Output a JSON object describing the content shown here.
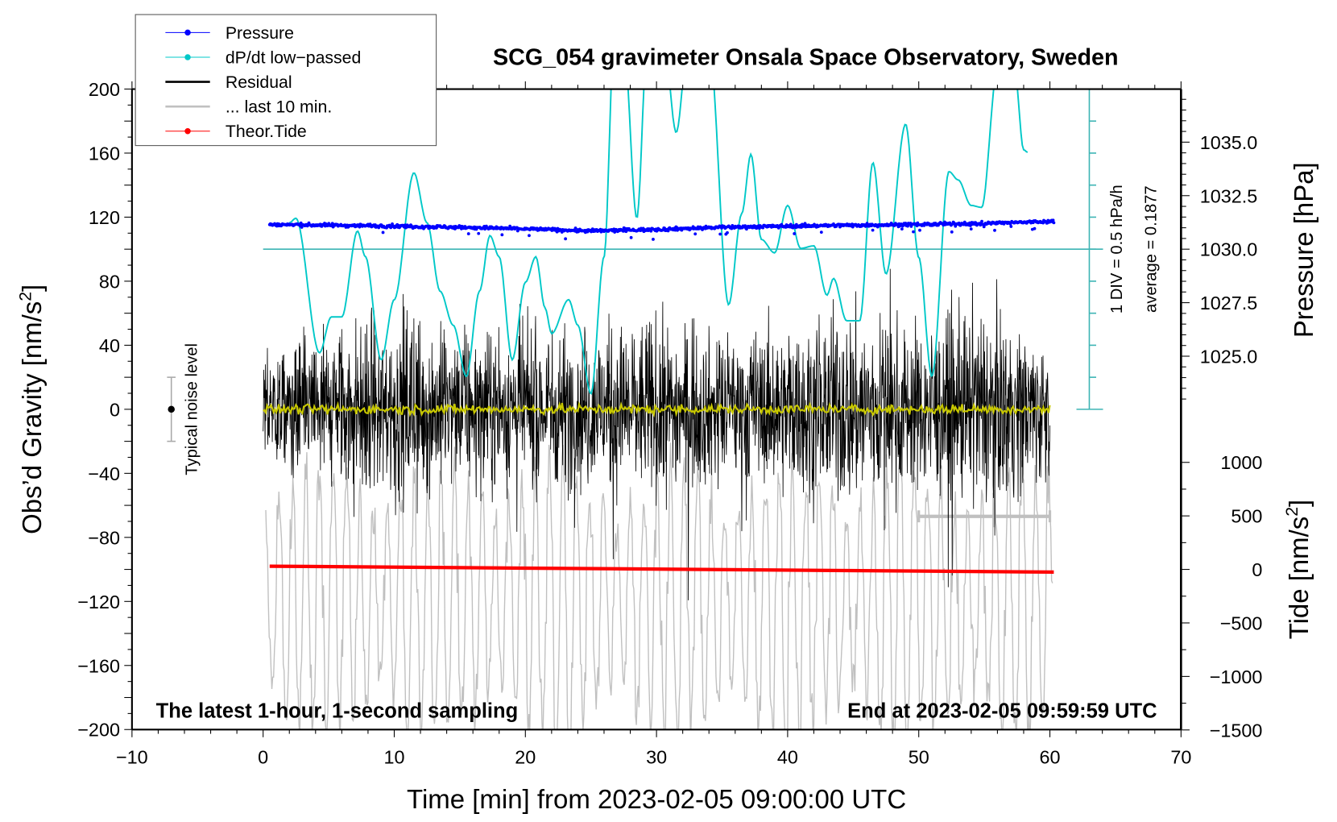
{
  "chart_data": {
    "type": "line",
    "title": "SCG_054 gravimeter Onsala Space Observatory, Sweden",
    "xlabel": "Time [min] from 2023-02-05 09:00:00 UTC",
    "ylabel": "Obs’d Gravity [nm/s",
    "ylabel_sup": "2",
    "ylabel_end": "]",
    "y2label": "Pressure [hPa]",
    "y3label": "Tide [nm/s",
    "y3label_sup": "2",
    "y3label_end": "]",
    "xlim": [
      -10,
      70
    ],
    "ylim": [
      -200,
      200
    ],
    "pressure_lim_visible": [
      1025.0,
      1035.0
    ],
    "tide_lim": [
      -1500,
      1000
    ],
    "x_ticks": [
      "−10",
      "0",
      "10",
      "20",
      "30",
      "40",
      "50",
      "60",
      "70"
    ],
    "x_tick_values": [
      -10,
      0,
      10,
      20,
      30,
      40,
      50,
      60,
      70
    ],
    "y_ticks": [
      "200",
      "160",
      "120",
      "80",
      "40",
      "0",
      "−40",
      "−80",
      "−120",
      "−160",
      "−200"
    ],
    "y_tick_values": [
      200,
      160,
      120,
      80,
      40,
      0,
      -40,
      -80,
      -120,
      -160,
      -200
    ],
    "pressure_ticks": [
      "1035.0",
      "1032.5",
      "1030.0",
      "1027.5",
      "1025.0"
    ],
    "pressure_tick_values": [
      1035.0,
      1032.5,
      1030.0,
      1027.5,
      1025.0
    ],
    "tide_ticks": [
      "1000",
      "500",
      "0",
      "−500",
      "−1000",
      "−1500"
    ],
    "tide_tick_values": [
      1000,
      500,
      0,
      -500,
      -1000,
      -1500
    ],
    "legend": {
      "placement": "top-left",
      "entries": [
        {
          "label": "Pressure",
          "color": "#0000ff",
          "marker": true
        },
        {
          "label": "dP/dt low−passed",
          "color": "#00c8c8",
          "marker": true
        },
        {
          "label": "Residual",
          "color": "#000000",
          "marker": false
        },
        {
          "label": "... last 10 min.",
          "color": "#c0c0c0",
          "marker": false
        },
        {
          "label": "Theor.Tide",
          "color": "#ff0000",
          "marker": true
        }
      ]
    },
    "annotations": {
      "bottom_left": "The latest 1-hour, 1-second sampling",
      "bottom_right": "End at 2023-02-05 09:59:59 UTC",
      "div_scale": "1 DIV = 0.5 hPa/h",
      "average": "average = 0.1877",
      "noise_level": "Typical noise level"
    },
    "dpdt_scale": {
      "per_div_hPa_per_h": 0.5,
      "average": 0.1877
    },
    "noise_level_bar": {
      "x_min": -7,
      "center": 0,
      "half_range": 20
    },
    "series": [
      {
        "name": "Pressure",
        "color": "#0000ff",
        "axis": "pressure_hPa",
        "x": [
          0.5,
          5,
          10,
          15,
          20,
          25,
          30,
          35,
          40,
          45,
          50,
          55,
          60.3
        ],
        "y": [
          1031.15,
          1031.12,
          1031.08,
          1031.02,
          1030.95,
          1030.85,
          1030.92,
          1031.02,
          1031.08,
          1031.12,
          1031.15,
          1031.2,
          1031.3
        ]
      },
      {
        "name": "dP/dt low-passed",
        "color": "#00c8c8",
        "axis": "hPa_per_h",
        "x": [
          2.0,
          2.5,
          4.3,
          5.2,
          6.0,
          7.2,
          7.8,
          9.0,
          10.0,
          11.5,
          12.5,
          13.5,
          14.5,
          15.5,
          16.5,
          17.3,
          18.0,
          19.0,
          20.0,
          20.8,
          21.5,
          22.0,
          23.3,
          24.0,
          25.0,
          26.0,
          26.8,
          27.5,
          28.5,
          29.3,
          30.5,
          31.5,
          32.5,
          34.0,
          35.5,
          36.5,
          37.2,
          38.0,
          39.0,
          40.0,
          41.0,
          42.0,
          43.0,
          43.5,
          44.5,
          45.5,
          46.5,
          47.5,
          49.0,
          50.0,
          51.0,
          52.3,
          53.0,
          54.0,
          54.8,
          56.0,
          57.3,
          58.0,
          58.3
        ],
        "y": [
          0.6,
          0.67,
          -1.43,
          -0.87,
          -0.87,
          0.47,
          0.07,
          -1.54,
          -0.6,
          1.38,
          0.6,
          -0.47,
          -1.0,
          -1.8,
          -0.47,
          0.4,
          0.07,
          -1.54,
          -0.33,
          0.07,
          -0.73,
          -1.13,
          -0.6,
          -1.0,
          -2.07,
          0.07,
          3.6,
          3.4,
          0.67,
          3.4,
          3.6,
          2.01,
          3.6,
          3.4,
          -0.68,
          0.74,
          1.67,
          0.34,
          0.13,
          0.87,
          0.2,
          0.24,
          -0.53,
          -0.27,
          -0.93,
          -0.93,
          1.54,
          -0.2,
          2.14,
          0.06,
          -1.8,
          1.4,
          1.27,
          0.87,
          0.84,
          3.0,
          3.0,
          1.74,
          1.7
        ]
      },
      {
        "name": "Residual",
        "color": "#000000",
        "axis": "nm_per_s2",
        "x": [
          0,
          5,
          10,
          15,
          20,
          25,
          30,
          35,
          40,
          45,
          50,
          55,
          60
        ],
        "amplitude": [
          30,
          45,
          55,
          40,
          45,
          45,
          50,
          40,
          45,
          55,
          45,
          55,
          40
        ]
      },
      {
        "name": "Residual smoothed",
        "color": "#c8c800",
        "axis": "nm_per_s2",
        "x": [
          0,
          60
        ],
        "y": [
          0,
          0
        ]
      },
      {
        "name": "... last 10 min.",
        "color": "#c0c0c0",
        "axis": "nm_per_s2",
        "span_minutes": [
          50,
          60
        ],
        "center": -120,
        "amplitude": 45
      },
      {
        "name": "Theor.Tide",
        "color": "#ff0000",
        "axis": "tide_nm_per_s2",
        "x": [
          0.5,
          60.3
        ],
        "y": [
          30,
          -25
        ]
      }
    ]
  }
}
